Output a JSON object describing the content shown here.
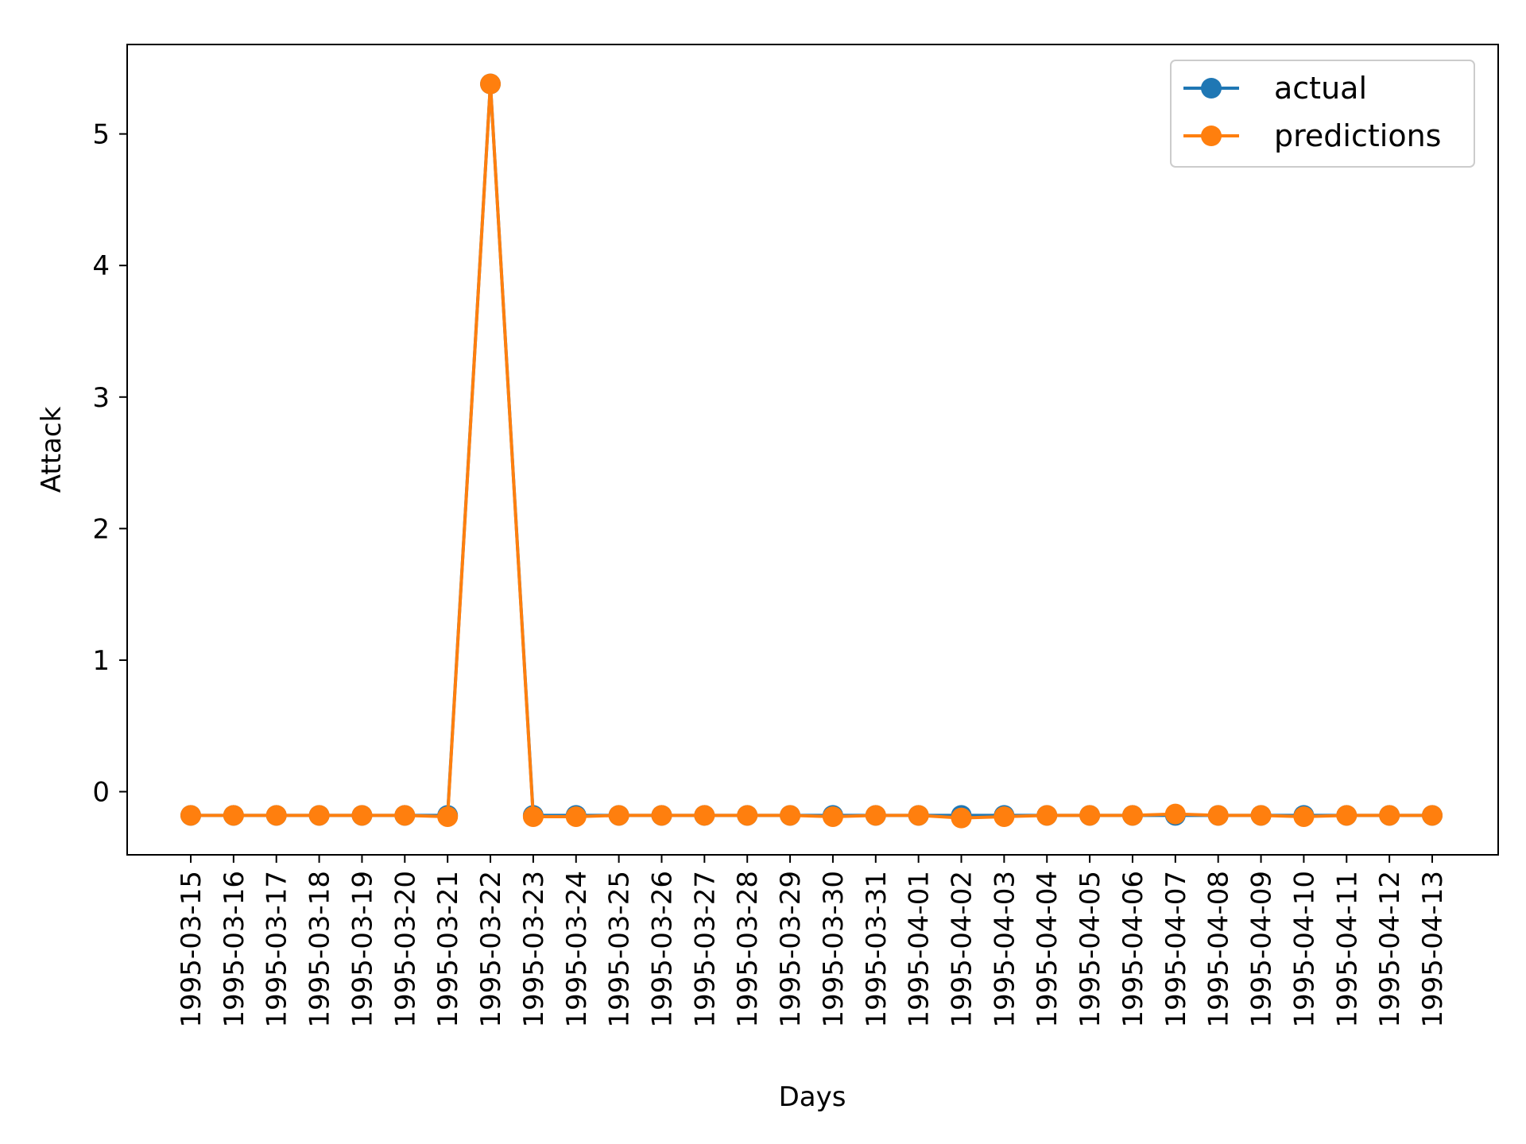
{
  "chart_data": {
    "type": "line",
    "title": "",
    "xlabel": "Days",
    "ylabel": "Attack",
    "categories": [
      "1995-03-15",
      "1995-03-16",
      "1995-03-17",
      "1995-03-18",
      "1995-03-19",
      "1995-03-20",
      "1995-03-21",
      "1995-03-22",
      "1995-03-23",
      "1995-03-24",
      "1995-03-25",
      "1995-03-26",
      "1995-03-27",
      "1995-03-28",
      "1995-03-29",
      "1995-03-30",
      "1995-03-31",
      "1995-04-01",
      "1995-04-02",
      "1995-04-03",
      "1995-04-04",
      "1995-04-05",
      "1995-04-06",
      "1995-04-07",
      "1995-04-08",
      "1995-04-09",
      "1995-04-10",
      "1995-04-11",
      "1995-04-12",
      "1995-04-13"
    ],
    "yticks": [
      0,
      1,
      2,
      3,
      4,
      5
    ],
    "ylim": [
      -0.48,
      5.68
    ],
    "grid": false,
    "legend_position": "top-right",
    "series": [
      {
        "name": "actual",
        "color": "#1f77b4",
        "values": [
          -0.18,
          -0.18,
          -0.18,
          -0.18,
          -0.18,
          -0.18,
          -0.18,
          5.38,
          -0.18,
          -0.18,
          -0.18,
          -0.18,
          -0.18,
          -0.18,
          -0.18,
          -0.18,
          -0.18,
          -0.18,
          -0.18,
          -0.18,
          -0.18,
          -0.18,
          -0.18,
          -0.18,
          -0.18,
          -0.18,
          -0.18,
          -0.18,
          -0.18,
          -0.18
        ]
      },
      {
        "name": "predictions",
        "color": "#ff7f0e",
        "values": [
          -0.18,
          -0.18,
          -0.18,
          -0.18,
          -0.18,
          -0.18,
          -0.19,
          5.38,
          -0.19,
          -0.19,
          -0.18,
          -0.18,
          -0.18,
          -0.18,
          -0.18,
          -0.19,
          -0.18,
          -0.18,
          -0.2,
          -0.19,
          -0.18,
          -0.18,
          -0.18,
          -0.17,
          -0.18,
          -0.18,
          -0.19,
          -0.18,
          -0.18,
          -0.18
        ]
      }
    ]
  }
}
